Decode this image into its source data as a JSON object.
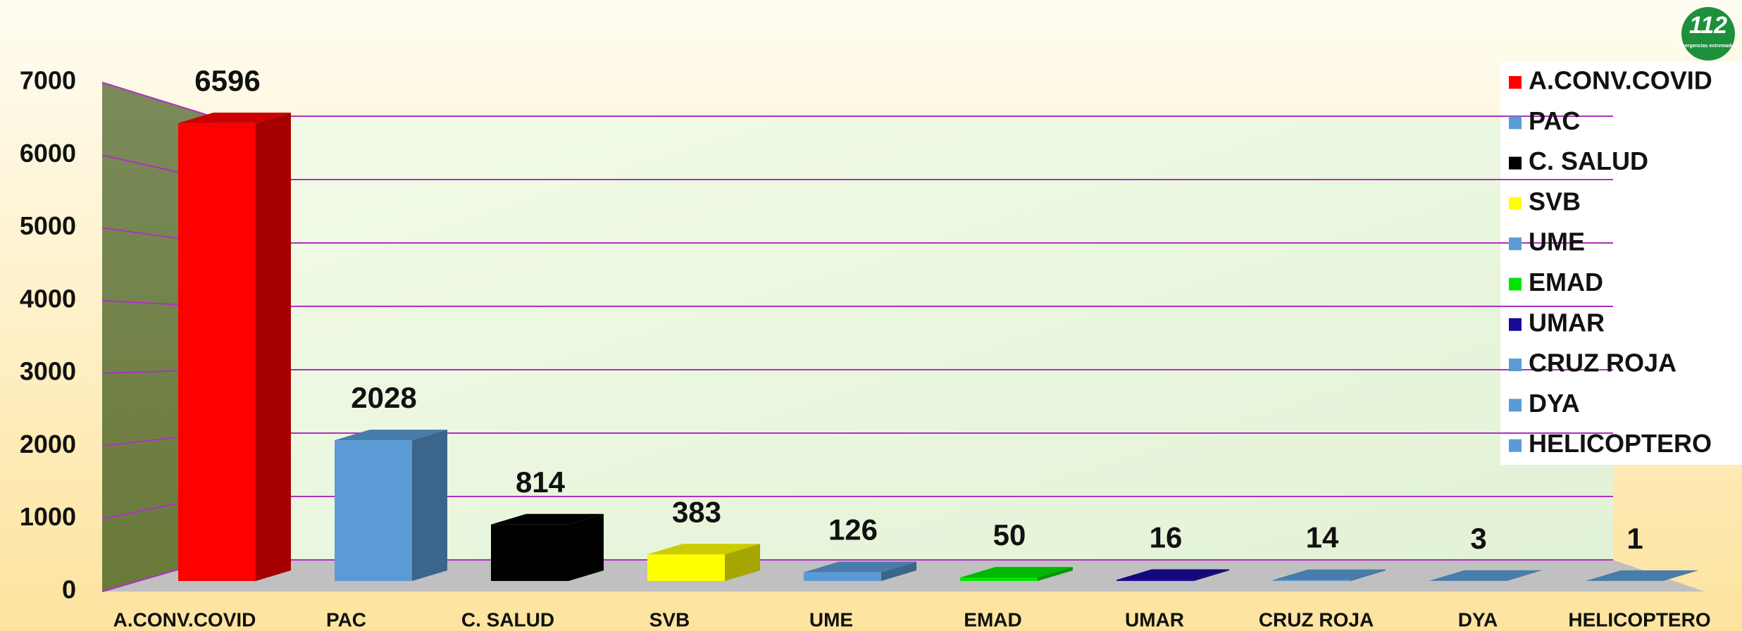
{
  "chart_data": {
    "type": "bar",
    "categories": [
      "A.CONV.COVID",
      "PAC",
      "C. SALUD",
      "SVB",
      "UME",
      "EMAD",
      "UMAR",
      "CRUZ ROJA",
      "DYA",
      "HELICOPTERO"
    ],
    "values": [
      6596,
      2028,
      814,
      383,
      126,
      50,
      16,
      14,
      3,
      1
    ],
    "colors": [
      "#ff0000",
      "#5b9bd5",
      "#000000",
      "#ffff00",
      "#5b9bd5",
      "#00e600",
      "#1a0a9a",
      "#5b9bd5",
      "#5b9bd5",
      "#5b9bd5"
    ],
    "ylim": [
      0,
      7000
    ],
    "yticks": [
      0,
      1000,
      2000,
      3000,
      4000,
      5000,
      6000,
      7000
    ],
    "grid": true,
    "legend": "right",
    "logo": {
      "number": "112",
      "text": "emergencias extremadura"
    }
  }
}
